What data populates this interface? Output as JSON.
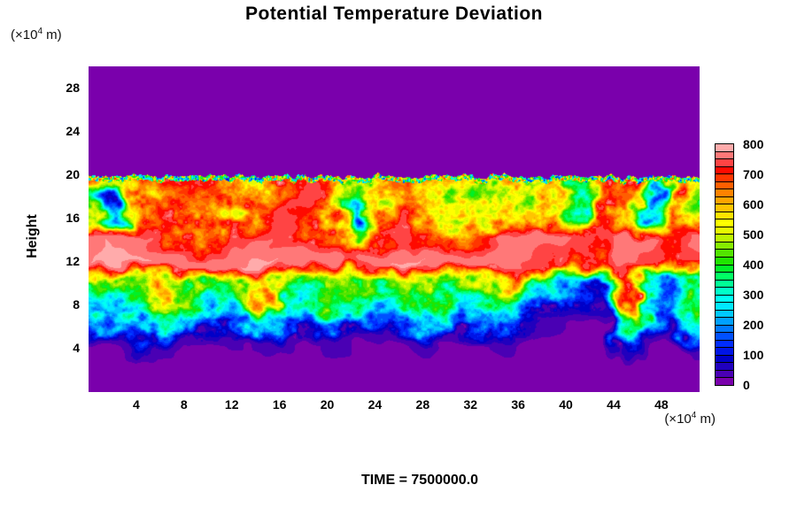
{
  "title": "Potential Temperature Deviation",
  "time_label": "TIME = 7500000.0",
  "y_axis": {
    "label": "Height",
    "unit_prefix": "(×10",
    "unit_sup": "4",
    "unit_suffix": " m)"
  },
  "x_axis": {
    "unit_prefix": "(×10",
    "unit_sup": "4",
    "unit_suffix": " m)"
  },
  "chart_data": {
    "type": "heatmap",
    "title": "Potential Temperature Deviation",
    "xlabel_unit": "(x10^4 m)",
    "ylabel": "Height",
    "ylabel_unit": "(x10^4 m)",
    "annotation": "TIME = 7500000.0",
    "xlim": [
      0,
      51.2
    ],
    "ylim": [
      0,
      30.05
    ],
    "x_ticks": [
      4,
      8,
      12,
      16,
      20,
      24,
      28,
      32,
      36,
      40,
      44,
      48
    ],
    "y_ticks": [
      4,
      8,
      12,
      16,
      20,
      24,
      28
    ],
    "grid": false,
    "colorbar": {
      "min": 0,
      "max": 800,
      "step": 25,
      "tick_labels": [
        0,
        100,
        200,
        300,
        400,
        500,
        600,
        700,
        800
      ],
      "position": "right",
      "palette": [
        "#7A00AC",
        "#4A00B4",
        "#2000BE",
        "#0000C8",
        "#0014E6",
        "#002CFF",
        "#0050FF",
        "#0078FF",
        "#00A0FF",
        "#00C8FF",
        "#00E8FF",
        "#00FFF4",
        "#00FFC8",
        "#00FF96",
        "#00FF64",
        "#00F028",
        "#20E400",
        "#52E400",
        "#86EC00",
        "#BCF400",
        "#E6FA00",
        "#FFFF00",
        "#FFE200",
        "#FFC400",
        "#FFA400",
        "#FF8200",
        "#FF5E00",
        "#FF3600",
        "#FF0A00",
        "#FF4444",
        "#FF7878",
        "#FFABAB"
      ]
    },
    "field": {
      "note": "Turbulent 2D temperature-deviation field, approximated on a coarse grid (values in colorbar units 0-800). Background value 0 (purple) above height ~20 and below ~4; flat salmon core (~775) at heights 12-15.5; sharp ragged top boundary at height ~19.9; scattered dark-blue blobs below height 6.",
      "cols": 26,
      "rows": 16,
      "top_boundary_height": 19.9,
      "boundary_waviness": 0.5,
      "fringe_depth": 0.45,
      "warp_x": 1.4,
      "warp_y": 0.9,
      "noise_amp": 160,
      "background_value": 4,
      "values": [
        [
          0,
          0,
          0,
          0,
          0,
          0,
          0,
          0,
          0,
          0,
          0,
          0,
          0,
          0,
          0,
          0,
          0,
          0,
          0,
          0,
          0,
          0,
          0,
          0,
          0,
          0
        ],
        [
          0,
          0,
          0,
          0,
          0,
          0,
          0,
          0,
          0,
          0,
          0,
          0,
          0,
          0,
          0,
          0,
          0,
          0,
          0,
          0,
          0,
          0,
          0,
          0,
          0,
          0
        ],
        [
          0,
          0,
          0,
          0,
          0,
          0,
          0,
          0,
          0,
          0,
          0,
          0,
          0,
          0,
          0,
          0,
          0,
          0,
          0,
          0,
          0,
          0,
          0,
          0,
          0,
          0
        ],
        [
          0,
          0,
          0,
          0,
          0,
          0,
          0,
          0,
          0,
          0,
          0,
          0,
          0,
          0,
          0,
          0,
          0,
          0,
          0,
          0,
          0,
          0,
          0,
          0,
          0,
          0
        ],
        [
          0,
          0,
          0,
          0,
          0,
          0,
          0,
          0,
          0,
          0,
          0,
          0,
          0,
          0,
          0,
          0,
          0,
          0,
          0,
          0,
          0,
          0,
          0,
          0,
          0,
          0
        ],
        [
          600,
          500,
          650,
          700,
          720,
          680,
          600,
          550,
          700,
          740,
          600,
          450,
          600,
          700,
          650,
          550,
          500,
          550,
          500,
          600,
          550,
          650,
          700,
          400,
          650,
          500
        ],
        [
          350,
          80,
          550,
          680,
          700,
          680,
          620,
          600,
          700,
          750,
          500,
          400,
          550,
          700,
          650,
          500,
          460,
          520,
          460,
          560,
          300,
          650,
          700,
          180,
          650,
          420
        ],
        [
          500,
          250,
          620,
          700,
          640,
          620,
          580,
          700,
          750,
          700,
          620,
          120,
          650,
          720,
          600,
          520,
          500,
          540,
          580,
          620,
          350,
          700,
          550,
          250,
          680,
          560
        ],
        [
          770,
          775,
          760,
          700,
          660,
          680,
          720,
          760,
          740,
          700,
          660,
          500,
          680,
          740,
          700,
          680,
          720,
          770,
          775,
          760,
          740,
          720,
          775,
          760,
          720,
          760
        ],
        [
          775,
          778,
          778,
          775,
          775,
          762,
          775,
          778,
          775,
          775,
          762,
          742,
          775,
          778,
          775,
          762,
          775,
          775,
          742,
          722,
          702,
          682,
          762,
          742,
          702,
          742
        ],
        [
          400,
          460,
          500,
          560,
          450,
          350,
          420,
          560,
          460,
          400,
          500,
          450,
          350,
          460,
          500,
          400,
          460,
          560,
          350,
          240,
          150,
          100,
          700,
          300,
          200,
          360
        ],
        [
          260,
          310,
          360,
          600,
          400,
          260,
          310,
          650,
          360,
          260,
          410,
          310,
          260,
          360,
          410,
          260,
          310,
          410,
          200,
          120,
          80,
          60,
          720,
          260,
          200,
          350
        ],
        [
          130,
          180,
          230,
          270,
          170,
          90,
          130,
          270,
          170,
          90,
          210,
          130,
          90,
          170,
          230,
          90,
          130,
          210,
          60,
          30,
          20,
          20,
          460,
          130,
          50,
          300
        ],
        [
          15,
          25,
          70,
          35,
          12,
          6,
          18,
          45,
          25,
          8,
          35,
          12,
          6,
          25,
          45,
          8,
          12,
          35,
          6,
          6,
          6,
          6,
          90,
          25,
          8,
          35
        ],
        [
          0,
          0,
          0,
          0,
          0,
          0,
          0,
          0,
          0,
          0,
          0,
          0,
          0,
          0,
          0,
          0,
          0,
          0,
          0,
          0,
          0,
          0,
          0,
          0,
          0,
          0
        ],
        [
          0,
          0,
          0,
          0,
          0,
          0,
          0,
          0,
          0,
          0,
          0,
          0,
          0,
          0,
          0,
          0,
          0,
          0,
          0,
          0,
          0,
          0,
          0,
          0,
          0,
          0
        ]
      ]
    }
  }
}
